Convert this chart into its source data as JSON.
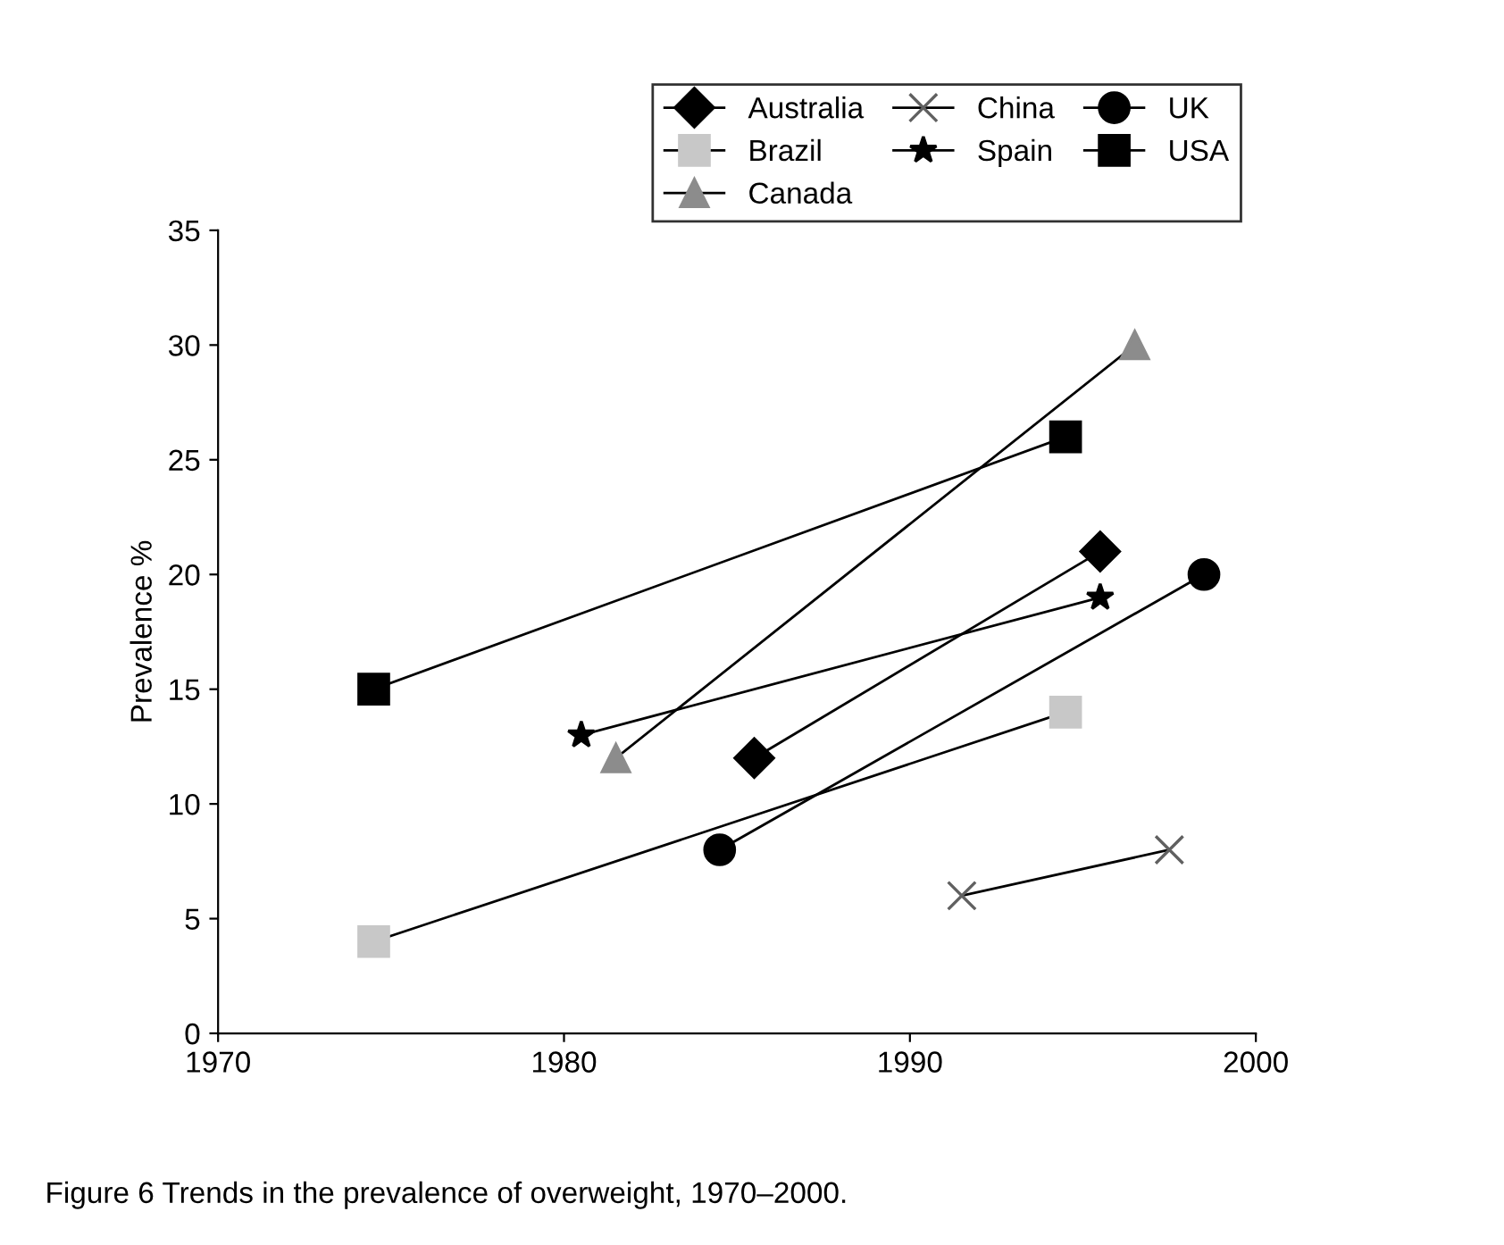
{
  "chart_data": {
    "type": "line",
    "ylabel": "Prevalence %",
    "xlim": [
      1970,
      2000
    ],
    "ylim": [
      0,
      35
    ],
    "xticks": [
      1970,
      1980,
      1990,
      2000
    ],
    "yticks": [
      0,
      5,
      10,
      15,
      20,
      25,
      30,
      35
    ],
    "grid": false,
    "legend": "top right",
    "line_style": "solid",
    "series": [
      {
        "name": "Australia",
        "color": "#000000",
        "marker": "diamond",
        "x": [
          1985.5,
          1995.5
        ],
        "values": [
          12,
          21
        ]
      },
      {
        "name": "Brazil",
        "color": "#c8c8c8",
        "marker": "square",
        "x": [
          1974.5,
          1994.5
        ],
        "values": [
          4,
          14
        ]
      },
      {
        "name": "Canada",
        "color": "#8c8c8c",
        "marker": "triangle",
        "x": [
          1981.5,
          1996.5
        ],
        "values": [
          12,
          30
        ]
      },
      {
        "name": "China",
        "color": "#606060",
        "marker": "cross",
        "x": [
          1991.5,
          1997.5
        ],
        "values": [
          6,
          8
        ]
      },
      {
        "name": "Spain",
        "color": "#000000",
        "marker": "star",
        "x": [
          1980.5,
          1995.5
        ],
        "values": [
          13,
          19
        ]
      },
      {
        "name": "UK",
        "color": "#000000",
        "marker": "circle",
        "x": [
          1984.5,
          1998.5
        ],
        "values": [
          8,
          20
        ]
      },
      {
        "name": "USA",
        "color": "#000000",
        "marker": "square",
        "x": [
          1974.5,
          1994.5
        ],
        "values": [
          15,
          26
        ]
      }
    ],
    "annotations": [
      "Figure 6 Trends in the prevalence of overweight, 1970–2000."
    ]
  }
}
